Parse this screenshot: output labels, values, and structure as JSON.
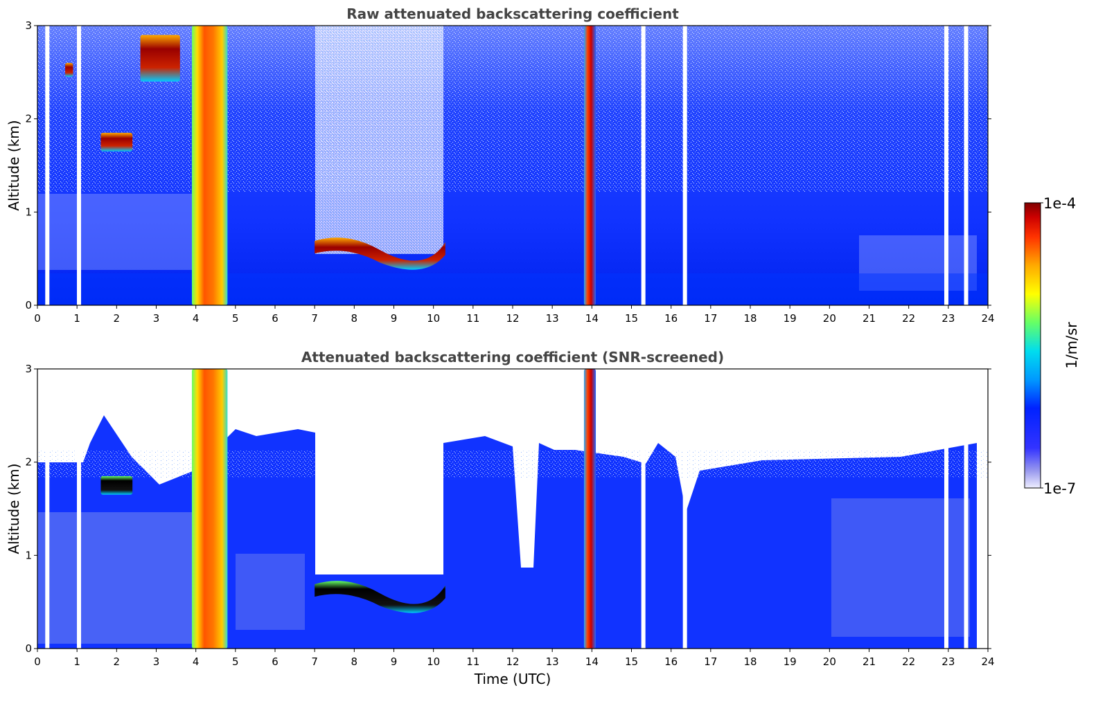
{
  "chart_data": [
    {
      "type": "heatmap",
      "title": "Raw attenuated backscattering coefficient",
      "xlabel": "",
      "ylabel": "Altitude (km)",
      "xlim": [
        0,
        24
      ],
      "ylim": [
        0,
        3
      ],
      "xticks": [
        "0",
        "1",
        "2",
        "3",
        "4",
        "5",
        "6",
        "7",
        "8",
        "9",
        "10",
        "11",
        "12",
        "13",
        "14",
        "15",
        "16",
        "17",
        "18",
        "19",
        "20",
        "21",
        "22",
        "23",
        "24"
      ],
      "yticks": [
        "0",
        "1",
        "2",
        "3"
      ],
      "grid": false,
      "background_level": "low (blue, noisy aloft)",
      "features": [
        {
          "name": "rain shaft",
          "t_start": 3.9,
          "t_end": 4.8,
          "z_bottom": 0,
          "z_top": 3,
          "level": "high"
        },
        {
          "name": "rain shaft",
          "t_start": 13.8,
          "t_end": 14.1,
          "z_bottom": 0,
          "z_top": 3,
          "level": "high"
        },
        {
          "name": "cloud layer",
          "t_start": 7.0,
          "t_end": 10.3,
          "z_bottom": 0.3,
          "z_top": 0.75,
          "level": "high"
        },
        {
          "name": "cloud patch",
          "t_start": 1.6,
          "t_end": 2.4,
          "z_bottom": 1.65,
          "z_top": 1.85,
          "level": "high"
        },
        {
          "name": "cloud patch",
          "t_start": 0.7,
          "t_end": 0.9,
          "z_bottom": 2.45,
          "z_top": 2.6,
          "level": "high"
        },
        {
          "name": "cloud patch",
          "t_start": 2.6,
          "t_end": 3.6,
          "z_bottom": 2.4,
          "z_top": 2.9,
          "level": "high"
        }
      ],
      "data_gaps_utc": [
        0.25,
        1.05,
        15.3,
        16.35,
        22.95,
        23.45
      ]
    },
    {
      "type": "heatmap",
      "title": "Attenuated backscattering coefficient (SNR-screened)",
      "xlabel": "Time (UTC)",
      "ylabel": "Altitude (km)",
      "xlim": [
        0,
        24
      ],
      "ylim": [
        0,
        3
      ],
      "xticks": [
        "0",
        "1",
        "2",
        "3",
        "4",
        "5",
        "6",
        "7",
        "8",
        "9",
        "10",
        "11",
        "12",
        "13",
        "14",
        "15",
        "16",
        "17",
        "18",
        "19",
        "20",
        "21",
        "22",
        "23",
        "24"
      ],
      "yticks": [
        "0",
        "1",
        "2",
        "3"
      ],
      "grid": false,
      "screened_top_km": 2.0,
      "screened_region_color": "#ffffff",
      "features": [
        {
          "name": "rain shaft",
          "t_start": 3.9,
          "t_end": 4.8,
          "z_bottom": 0,
          "z_top": 3,
          "level": "high"
        },
        {
          "name": "rain shaft",
          "t_start": 13.8,
          "t_end": 14.1,
          "z_bottom": 0,
          "z_top": 3,
          "level": "high"
        },
        {
          "name": "cloud layer",
          "t_start": 7.0,
          "t_end": 10.3,
          "z_bottom": 0.3,
          "z_top": 0.75,
          "level": "saturated"
        },
        {
          "name": "cloud patch",
          "t_start": 1.6,
          "t_end": 2.4,
          "z_bottom": 1.65,
          "z_top": 1.85,
          "level": "saturated"
        }
      ],
      "data_gaps_utc": [
        0.25,
        1.05,
        15.3,
        16.35,
        22.95,
        23.45
      ]
    }
  ],
  "colorbar": {
    "label": "1/m/sr",
    "max_label": "1e-4",
    "min_label": "1e-7",
    "scale": "log",
    "colors": [
      "#eeeeff",
      "#9999ee",
      "#3333ff",
      "#0033ff",
      "#0099ff",
      "#00ddee",
      "#66ff66",
      "#ffff00",
      "#ffaa00",
      "#ff3300",
      "#cc0000",
      "#7f0000"
    ]
  }
}
